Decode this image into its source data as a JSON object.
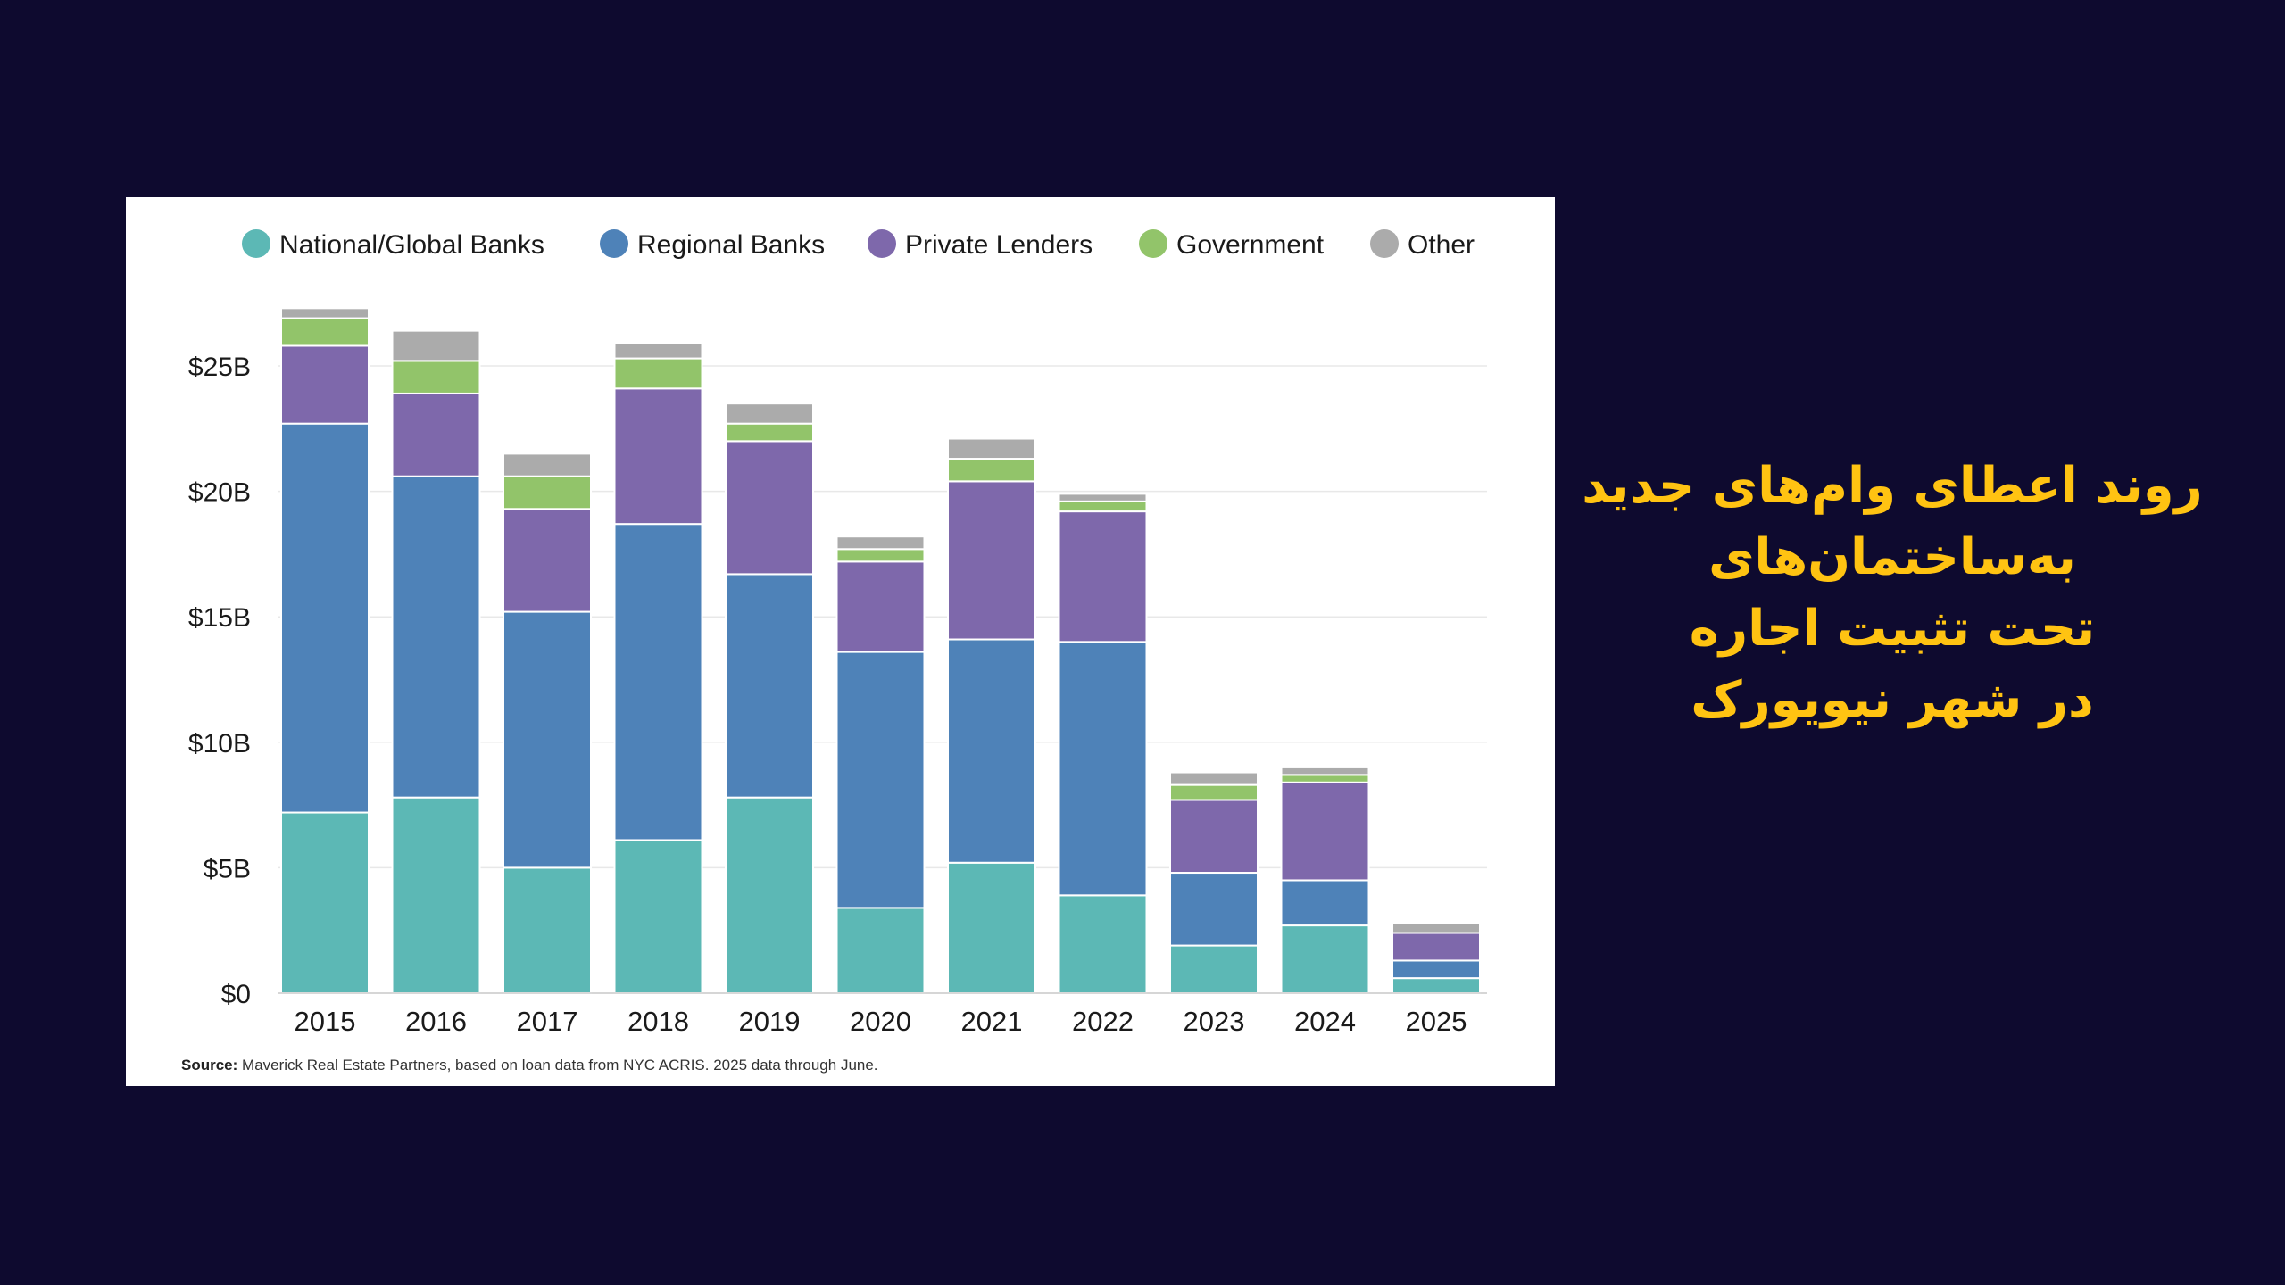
{
  "headline": {
    "lines": [
      "روند اعطای وام‌های جدید",
      "به‌ساختمان‌های",
      "تحت تثبیت اجاره",
      "در شهر نیویورک"
    ],
    "color": "#ffc312"
  },
  "background_color": "#0e0a2f",
  "source": {
    "label": "Source:",
    "text": "Maverick Real Estate Partners, based on loan data from NYC ACRIS. 2025 data through June."
  },
  "chart_data": {
    "type": "bar",
    "stacked": true,
    "title": "",
    "xlabel": "",
    "ylabel": "",
    "categories": [
      "2015",
      "2016",
      "2017",
      "2018",
      "2019",
      "2020",
      "2021",
      "2022",
      "2023",
      "2024",
      "2025"
    ],
    "series": [
      {
        "name": "National/Global Banks",
        "color": "#5cb8b5",
        "values": [
          7.2,
          7.8,
          5.0,
          6.1,
          7.8,
          3.4,
          5.2,
          3.9,
          1.9,
          2.7,
          0.6
        ]
      },
      {
        "name": "Regional Banks",
        "color": "#4e82b8",
        "values": [
          15.5,
          12.8,
          10.2,
          12.6,
          8.9,
          10.2,
          8.9,
          10.1,
          2.9,
          1.8,
          0.7
        ]
      },
      {
        "name": "Private Lenders",
        "color": "#7e68ab",
        "values": [
          3.1,
          3.3,
          4.1,
          5.4,
          5.3,
          3.6,
          6.3,
          5.2,
          2.9,
          3.9,
          1.1
        ]
      },
      {
        "name": "Government",
        "color": "#92c46a",
        "values": [
          1.1,
          1.3,
          1.3,
          1.2,
          0.7,
          0.5,
          0.9,
          0.4,
          0.6,
          0.3,
          0.0
        ]
      },
      {
        "name": "Other",
        "color": "#ababab",
        "values": [
          0.4,
          1.2,
          0.9,
          0.6,
          0.8,
          0.5,
          0.8,
          0.3,
          0.5,
          0.3,
          0.4
        ]
      }
    ],
    "ylim": [
      0,
      27.5
    ],
    "yticks": [
      0,
      5,
      10,
      15,
      20,
      25
    ],
    "ytick_labels": [
      "$0",
      "$5B",
      "$10B",
      "$15B",
      "$20B",
      "$25B"
    ],
    "legend_position": "top",
    "grid": true
  }
}
